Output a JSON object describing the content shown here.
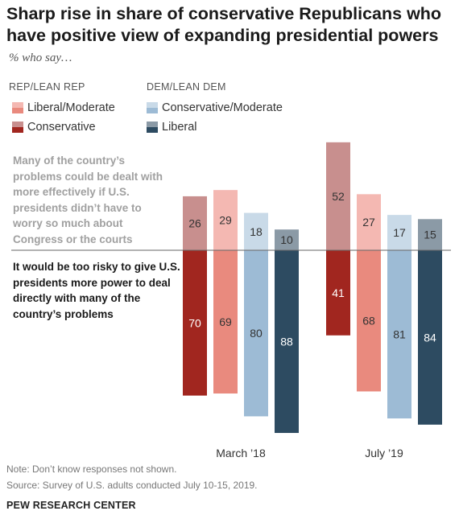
{
  "title": "Sharp rise in share of conservative Republicans who have positive view of expanding presidential powers",
  "subtitle": "% who say…",
  "legend": {
    "rep_header": "REP/LEAN REP",
    "dem_header": "DEM/LEAN DEM",
    "items": [
      {
        "label": "Liberal/Moderate",
        "color_top": "#f4b8b2",
        "color_bottom": "#e98a7e"
      },
      {
        "label": "Conservative",
        "color_top": "#c88f8e",
        "color_bottom": "#a1261f"
      },
      {
        "label": "Conservative/Moderate",
        "color_top": "#c9dae8",
        "color_bottom": "#9dbbd5"
      },
      {
        "label": "Liberal",
        "color_top": "#8b9aa6",
        "color_bottom": "#2d4b61"
      }
    ]
  },
  "questions": {
    "top": "Many of the country’s problems could be dealt with more effectively if U.S. presidents didn’t have to worry so much about Congress or the courts",
    "bottom": "It would be too risky to give U.S. presidents more power to deal directly with many of the country’s problems"
  },
  "chart_data": {
    "type": "bar",
    "categories": [
      "March ’18",
      "July ’19"
    ],
    "series": [
      {
        "name": "Conservative",
        "color_top": "#c88f8e",
        "color_bottom": "#a1261f",
        "top": [
          26,
          52
        ],
        "bottom": [
          70,
          41
        ]
      },
      {
        "name": "Liberal/Moderate",
        "color_top": "#f4b8b2",
        "color_bottom": "#e98a7e",
        "top": [
          29,
          27
        ],
        "bottom": [
          69,
          68
        ]
      },
      {
        "name": "Conservative/Moderate",
        "color_top": "#c9dae8",
        "color_bottom": "#9dbbd5",
        "top": [
          18,
          17
        ],
        "bottom": [
          80,
          81
        ]
      },
      {
        "name": "Liberal",
        "color_top": "#8b9aa6",
        "color_bottom": "#2d4b61",
        "top": [
          10,
          15
        ],
        "bottom": [
          88,
          84
        ]
      }
    ],
    "top_label_color_dark_series": "#333333",
    "bottom_label_color": "#ffffff"
  },
  "notes": {
    "note": "Note: Don’t know responses not shown.",
    "source": "Source: Survey of U.S. adults conducted July 10-15, 2019.",
    "brand": "PEW RESEARCH CENTER"
  }
}
